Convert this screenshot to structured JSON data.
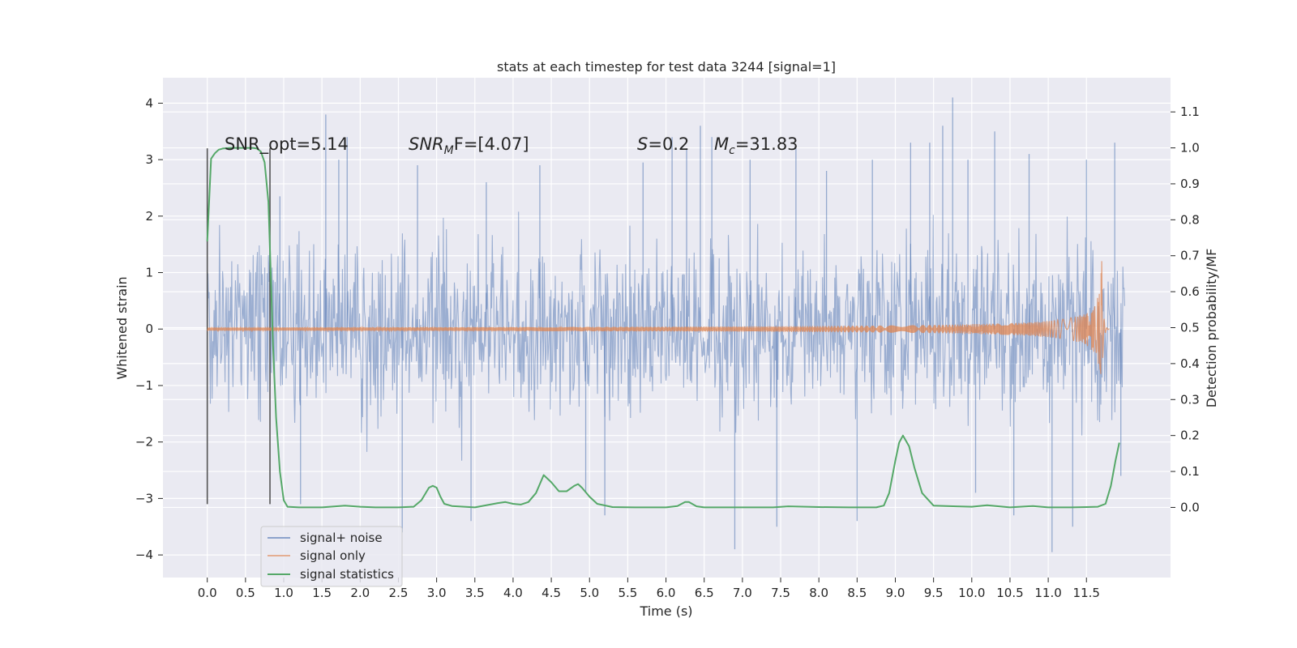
{
  "chart_data": {
    "type": "line",
    "title": "stats at each timestep for test data 3244 [signal=1]",
    "xlabel": "Time (s)",
    "ylabel_left": "Whitened strain",
    "ylabel_right": "Detection probability/MF",
    "xlim": [
      -0.58,
      12.6
    ],
    "ylim_left": [
      -4.4,
      4.45
    ],
    "ylim_right": [
      -0.195,
      1.195
    ],
    "x_ticks": [
      0.0,
      0.5,
      1.0,
      1.5,
      2.0,
      2.5,
      3.0,
      3.5,
      4.0,
      4.5,
      5.0,
      5.5,
      6.0,
      6.5,
      7.0,
      7.5,
      8.0,
      8.5,
      9.0,
      9.5,
      10.0,
      10.5,
      11.0,
      11.5
    ],
    "x_tick_labels": [
      "0.0",
      "0.5",
      "1.0",
      "1.5",
      "2.0",
      "2.5",
      "3.0",
      "3.5",
      "4.0",
      "4.5",
      "5.0",
      "5.5",
      "6.0",
      "6.5",
      "7.0",
      "7.5",
      "8.0",
      "8.5",
      "9.0",
      "9.5",
      "10.0",
      "10.5",
      "11.0",
      "11.5"
    ],
    "y_left_ticks": [
      -4,
      -3,
      -2,
      -1,
      0,
      1,
      2,
      3,
      4
    ],
    "y_left_tick_labels": [
      "−4",
      "−3",
      "−2",
      "−1",
      "0",
      "1",
      "2",
      "3",
      "4"
    ],
    "y_right_ticks": [
      0.0,
      0.1,
      0.2,
      0.3,
      0.4,
      0.5,
      0.6,
      0.7,
      0.8,
      0.9,
      1.0,
      1.1
    ],
    "y_right_tick_labels": [
      "0.0",
      "0.1",
      "0.2",
      "0.3",
      "0.4",
      "0.5",
      "0.6",
      "0.7",
      "0.8",
      "0.9",
      "1.0",
      "1.1"
    ],
    "grid": true,
    "legend_position": "lower-left",
    "series": [
      {
        "name": "signal+ noise",
        "axis": "left",
        "color": "#4c72b0",
        "x_range": [
          0.0,
          12.0
        ],
        "typical_band": [
          -1.9,
          1.9
        ],
        "peaks": [
          [
            0.95,
            2.35
          ],
          [
            1.22,
            -3.1
          ],
          [
            1.55,
            3.8
          ],
          [
            1.72,
            3.0
          ],
          [
            1.83,
            3.4
          ],
          [
            2.55,
            -3.6
          ],
          [
            2.75,
            2.9
          ],
          [
            3.45,
            -3.4
          ],
          [
            3.65,
            2.6
          ],
          [
            4.35,
            2.9
          ],
          [
            4.95,
            -2.9
          ],
          [
            5.2,
            -3.3
          ],
          [
            5.7,
            2.95
          ],
          [
            6.08,
            3.4
          ],
          [
            6.27,
            3.2
          ],
          [
            6.45,
            3.6
          ],
          [
            6.6,
            3.4
          ],
          [
            6.9,
            -3.9
          ],
          [
            7.1,
            3.0
          ],
          [
            7.45,
            -3.5
          ],
          [
            7.7,
            3.2
          ],
          [
            8.1,
            2.8
          ],
          [
            8.5,
            -3.4
          ],
          [
            8.7,
            3.0
          ],
          [
            9.2,
            3.3
          ],
          [
            9.45,
            3.3
          ],
          [
            9.62,
            3.6
          ],
          [
            9.75,
            4.1
          ],
          [
            9.95,
            3.0
          ],
          [
            10.05,
            -2.9
          ],
          [
            10.3,
            3.5
          ],
          [
            10.55,
            -3.3
          ],
          [
            10.75,
            3.1
          ],
          [
            11.05,
            -3.95
          ],
          [
            11.32,
            -3.5
          ],
          [
            11.5,
            3.0
          ],
          [
            11.87,
            3.3
          ],
          [
            11.95,
            -2.6
          ]
        ]
      },
      {
        "name": "signal only",
        "axis": "left",
        "color": "#dd8452",
        "x_range": [
          0.0,
          11.8
        ],
        "chirp_end": 11.7,
        "chirp_peak_amplitude": 1.25
      },
      {
        "name": "signal statistics",
        "axis": "right",
        "color": "#55a868",
        "x": [
          0.0,
          0.05,
          0.1,
          0.15,
          0.2,
          0.3,
          0.4,
          0.5,
          0.6,
          0.65,
          0.7,
          0.75,
          0.8,
          0.83,
          0.86,
          0.9,
          0.95,
          1.0,
          1.05,
          1.2,
          1.5,
          1.8,
          2.0,
          2.2,
          2.5,
          2.7,
          2.8,
          2.9,
          2.95,
          3.0,
          3.05,
          3.1,
          3.2,
          3.5,
          3.8,
          3.9,
          4.0,
          4.1,
          4.2,
          4.3,
          4.4,
          4.5,
          4.6,
          4.7,
          4.8,
          4.85,
          4.9,
          5.0,
          5.1,
          5.3,
          5.6,
          6.0,
          6.15,
          6.25,
          6.3,
          6.4,
          6.5,
          7.0,
          7.4,
          7.6,
          8.0,
          8.4,
          8.6,
          8.75,
          8.85,
          8.92,
          9.0,
          9.05,
          9.1,
          9.18,
          9.25,
          9.35,
          9.5,
          9.8,
          10.0,
          10.2,
          10.5,
          10.8,
          11.0,
          11.3,
          11.5,
          11.65,
          11.75,
          11.82,
          11.88,
          11.93
        ],
        "y": [
          0.74,
          0.97,
          0.985,
          0.995,
          0.998,
          1.0,
          1.0,
          1.0,
          1.0,
          0.998,
          0.99,
          0.96,
          0.85,
          0.65,
          0.45,
          0.25,
          0.1,
          0.02,
          0.002,
          0.0,
          0.0,
          0.005,
          0.002,
          0.0,
          0.0,
          0.002,
          0.02,
          0.055,
          0.06,
          0.055,
          0.03,
          0.01,
          0.004,
          0.0,
          0.012,
          0.015,
          0.01,
          0.008,
          0.015,
          0.04,
          0.09,
          0.07,
          0.045,
          0.045,
          0.06,
          0.065,
          0.055,
          0.03,
          0.01,
          0.001,
          0.0,
          0.0,
          0.004,
          0.015,
          0.015,
          0.003,
          0.0,
          0.0,
          0.0,
          0.003,
          0.001,
          0.0,
          0.0,
          0.0,
          0.005,
          0.04,
          0.13,
          0.18,
          0.2,
          0.17,
          0.11,
          0.04,
          0.005,
          0.003,
          0.002,
          0.006,
          0.0,
          0.004,
          0.0,
          0.0,
          0.001,
          0.002,
          0.01,
          0.06,
          0.13,
          0.18
        ]
      }
    ],
    "vertical_lines": [
      {
        "x": 0.0,
        "y_range": [
          -3.1,
          3.2
        ],
        "color": "#555555"
      },
      {
        "x": 0.82,
        "y_range": [
          -3.1,
          3.2
        ],
        "color": "#555555"
      }
    ],
    "annotations": {
      "snr_opt": "SNR_opt=5.14",
      "snr_mf": {
        "main": "SNR",
        "sub": "M",
        "rest": "F=[4.07]"
      },
      "s": {
        "var": "S",
        "rest": "=0.2"
      },
      "mc": {
        "var": "M",
        "sub": "c",
        "rest": "=31.83"
      }
    }
  }
}
